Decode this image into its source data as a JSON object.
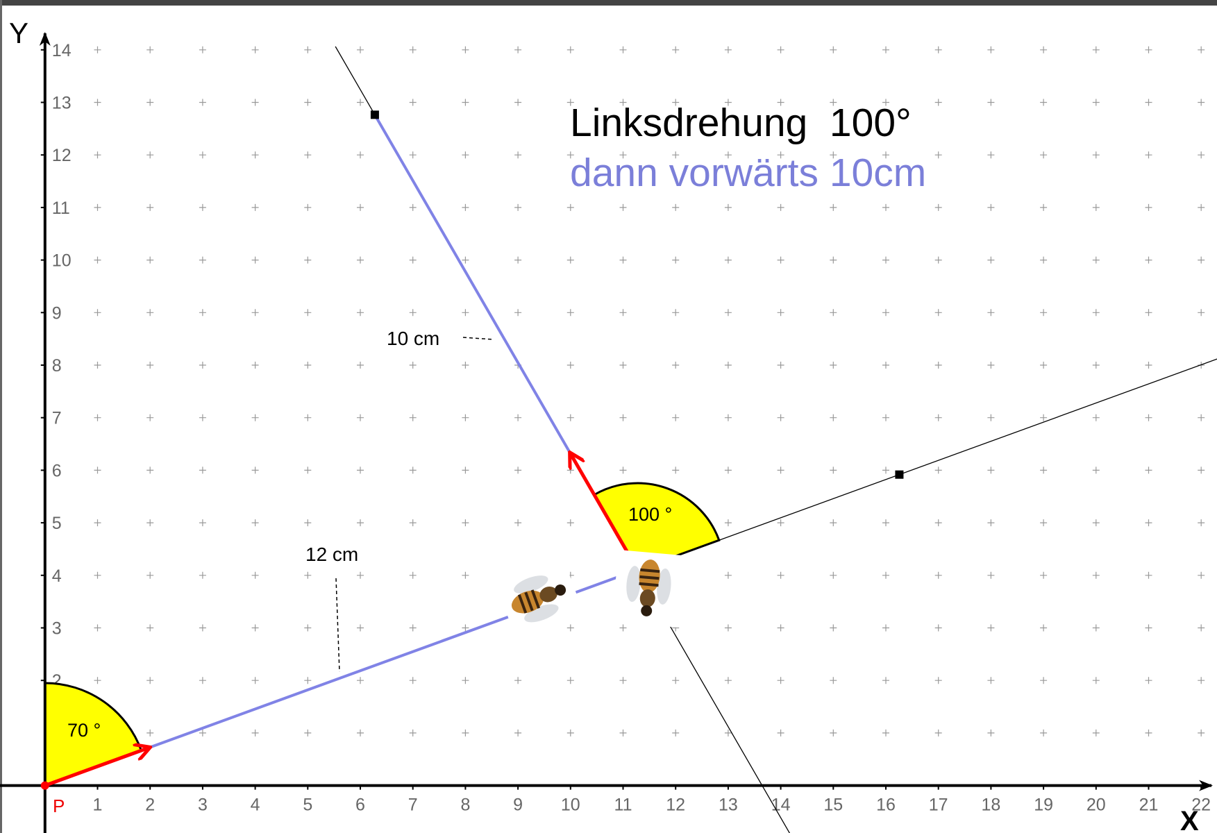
{
  "axes": {
    "x_label": "X",
    "y_label": "Y",
    "xticks": [
      1,
      2,
      3,
      4,
      5,
      6,
      7,
      8,
      9,
      10,
      11,
      12,
      13,
      14,
      15,
      16,
      17,
      18,
      19,
      20,
      21,
      22
    ],
    "yticks": [
      2,
      3,
      4,
      5,
      6,
      7,
      8,
      9,
      10,
      11,
      12,
      13,
      14
    ]
  },
  "point_label": "P",
  "angles": {
    "first": "70 °",
    "second": "100 °"
  },
  "lengths": {
    "first": "12 cm",
    "second": "10 cm"
  },
  "instruction": {
    "turn": "Linksdrehung  100°",
    "move": "dann vorwärts 10cm"
  }
}
